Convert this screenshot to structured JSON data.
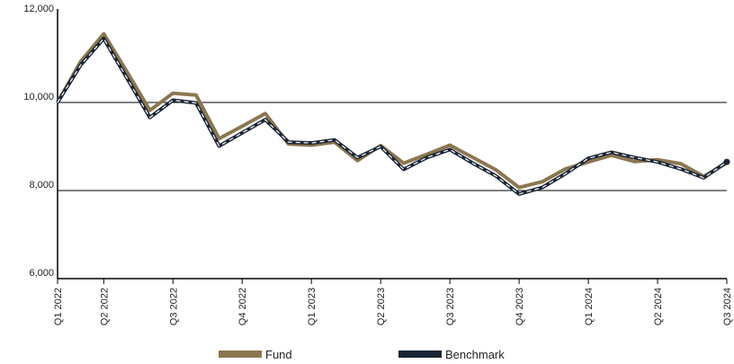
{
  "chart_data": {
    "type": "line",
    "title": "",
    "xlabel": "",
    "ylabel": "",
    "ylim": [
      6000,
      12000
    ],
    "yticks": [
      6000,
      8000,
      10000,
      12000
    ],
    "ytick_labels": [
      "6,000",
      "8,000",
      "10,000",
      "12,000"
    ],
    "gridlines": [
      8000,
      10000
    ],
    "x_tick_labels": [
      {
        "label": "Q1 2022",
        "index": 0
      },
      {
        "label": "Q2 2022",
        "index": 2
      },
      {
        "label": "Q3 2022",
        "index": 5
      },
      {
        "label": "Q4 2022",
        "index": 8
      },
      {
        "label": "Q1 2023",
        "index": 11
      },
      {
        "label": "Q2 2023",
        "index": 14
      },
      {
        "label": "Q3 2023",
        "index": 17
      },
      {
        "label": "Q4 2023",
        "index": 20
      },
      {
        "label": "Q1 2024",
        "index": 23
      },
      {
        "label": "Q2 2024",
        "index": 26
      },
      {
        "label": "Q3 2024",
        "index": 29
      }
    ],
    "n_points": 30,
    "legend_position": "bottom",
    "series": [
      {
        "name": "Fund",
        "color": "#8c7650",
        "style": "solid",
        "values": [
          10000,
          10930,
          11560,
          10700,
          9820,
          10210,
          10170,
          9180,
          9460,
          9750,
          9060,
          9030,
          9100,
          8680,
          9020,
          8620,
          8820,
          9030,
          8750,
          8470,
          8070,
          8200,
          8490,
          8650,
          8800,
          8660,
          8700,
          8610,
          8320,
          8630
        ]
      },
      {
        "name": "Benchmark",
        "color": "#1a2535",
        "style": "dashed",
        "values": [
          10000,
          10850,
          11450,
          10560,
          9660,
          10050,
          9990,
          9010,
          9310,
          9610,
          9100,
          9080,
          9150,
          8750,
          9000,
          8480,
          8750,
          8930,
          8620,
          8330,
          7920,
          8070,
          8380,
          8730,
          8870,
          8750,
          8650,
          8490,
          8290,
          8650
        ]
      }
    ]
  }
}
